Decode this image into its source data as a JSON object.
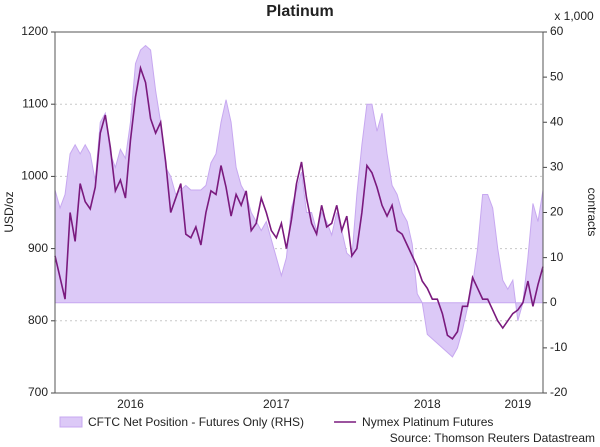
{
  "chart_data": {
    "type": "line",
    "title": "Platinum",
    "ylabel": "USD/oz",
    "y2label": "contracts",
    "y2unit": "x 1,000",
    "source": "Source: Thomson Reuters Datastream",
    "categories": [
      null,
      null,
      null,
      null,
      null,
      null,
      null,
      null,
      null,
      null,
      null,
      null,
      null,
      null,
      null,
      "2016",
      null,
      null,
      null,
      null,
      null,
      null,
      null,
      null,
      null,
      null,
      null,
      null,
      null,
      null,
      null,
      null,
      null,
      null,
      null,
      null,
      null,
      null,
      null,
      null,
      null,
      null,
      null,
      null,
      "2017",
      null,
      null,
      null,
      null,
      null,
      null,
      null,
      null,
      null,
      null,
      null,
      null,
      null,
      null,
      null,
      null,
      null,
      null,
      null,
      null,
      null,
      null,
      null,
      null,
      null,
      null,
      null,
      null,
      null,
      "2018",
      null,
      null,
      null,
      null,
      null,
      null,
      null,
      null,
      null,
      null,
      null,
      null,
      null,
      null,
      null,
      null,
      null,
      "2019",
      null,
      null,
      null,
      null,
      null
    ],
    "series": [
      {
        "name": "CFTC Net Position - Futures Only (RHS)",
        "type": "area",
        "axis": "y2",
        "color": "#dcc9f7",
        "values": [
          25,
          21,
          24,
          33,
          35,
          33,
          35,
          33,
          27,
          40,
          42,
          33,
          30,
          34,
          32,
          40,
          53,
          56,
          57,
          56,
          47,
          40,
          30,
          28,
          24,
          25,
          26,
          25,
          25,
          25,
          26,
          31,
          33,
          40,
          45,
          40,
          30,
          26,
          24,
          20,
          18,
          16,
          18,
          14,
          10,
          6,
          10,
          21,
          25,
          29,
          20,
          20,
          16,
          20,
          18,
          15,
          20,
          16,
          11,
          10,
          24,
          35,
          44,
          44,
          38,
          42,
          33,
          26,
          24,
          20,
          18,
          13,
          2,
          0,
          -7,
          -8,
          -9,
          -10,
          -11,
          -12,
          -10,
          -6,
          -1,
          4,
          12,
          24,
          24,
          21,
          12,
          5,
          3,
          5,
          -4,
          0,
          10,
          22,
          18,
          25
        ]
      },
      {
        "name": "Nymex Platinum Futures",
        "type": "line",
        "color": "#7a1a7e",
        "values": [
          890,
          860,
          830,
          950,
          910,
          990,
          965,
          955,
          985,
          1060,
          1085,
          1040,
          980,
          995,
          970,
          1050,
          1110,
          1150,
          1130,
          1080,
          1060,
          1075,
          1020,
          950,
          970,
          990,
          920,
          915,
          930,
          905,
          950,
          980,
          975,
          1015,
          985,
          945,
          975,
          960,
          980,
          925,
          935,
          970,
          950,
          925,
          915,
          935,
          900,
          940,
          990,
          1020,
          970,
          935,
          920,
          960,
          930,
          935,
          960,
          925,
          945,
          890,
          900,
          950,
          1015,
          1005,
          985,
          960,
          945,
          960,
          925,
          920,
          905,
          890,
          875,
          855,
          845,
          830,
          830,
          810,
          780,
          775,
          785,
          820,
          820,
          860,
          845,
          830,
          830,
          815,
          800,
          790,
          800,
          810,
          815,
          825,
          855,
          820,
          850,
          875
        ]
      }
    ],
    "ylim": [
      700,
      1200
    ],
    "yticks": [
      700,
      800,
      900,
      1000,
      1100,
      1200
    ],
    "y2lim": [
      -20,
      60
    ],
    "y2ticks": [
      -20,
      -10,
      0,
      10,
      20,
      30,
      40,
      50,
      60
    ],
    "grid": true
  }
}
